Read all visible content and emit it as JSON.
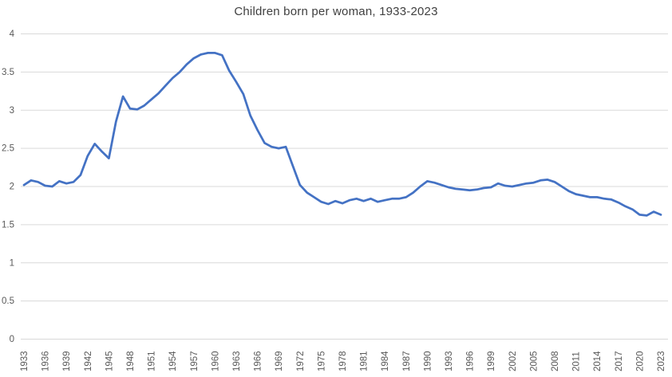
{
  "chart_data": {
    "type": "line",
    "title": "Children born per woman, 1933-2023",
    "xlabel": "",
    "ylabel": "",
    "legend": "none",
    "grid": "horizontal",
    "ylim": [
      0,
      4
    ],
    "yticks": [
      0,
      0.5,
      1,
      1.5,
      2,
      2.5,
      3,
      3.5,
      4
    ],
    "xticks": [
      1933,
      1936,
      1939,
      1942,
      1945,
      1948,
      1951,
      1954,
      1957,
      1960,
      1963,
      1966,
      1969,
      1972,
      1975,
      1978,
      1981,
      1984,
      1987,
      1990,
      1993,
      1996,
      1999,
      2002,
      2005,
      2008,
      2011,
      2014,
      2017,
      2020,
      2023
    ],
    "x": [
      1933,
      1934,
      1935,
      1936,
      1937,
      1938,
      1939,
      1940,
      1941,
      1942,
      1943,
      1944,
      1945,
      1946,
      1947,
      1948,
      1949,
      1950,
      1951,
      1952,
      1953,
      1954,
      1955,
      1956,
      1957,
      1958,
      1959,
      1960,
      1961,
      1962,
      1963,
      1964,
      1965,
      1966,
      1967,
      1968,
      1969,
      1970,
      1971,
      1972,
      1973,
      1974,
      1975,
      1976,
      1977,
      1978,
      1979,
      1980,
      1981,
      1982,
      1983,
      1984,
      1985,
      1986,
      1987,
      1988,
      1989,
      1990,
      1991,
      1992,
      1993,
      1994,
      1995,
      1996,
      1997,
      1998,
      1999,
      2000,
      2001,
      2002,
      2003,
      2004,
      2005,
      2006,
      2007,
      2008,
      2009,
      2010,
      2011,
      2012,
      2013,
      2014,
      2015,
      2016,
      2017,
      2018,
      2019,
      2020,
      2021,
      2022,
      2023
    ],
    "series": [
      {
        "name": "Children born per woman",
        "values": [
          2.02,
          2.08,
          2.06,
          2.01,
          2.0,
          2.07,
          2.04,
          2.06,
          2.15,
          2.4,
          2.56,
          2.46,
          2.37,
          2.85,
          3.18,
          3.02,
          3.01,
          3.06,
          3.14,
          3.22,
          3.32,
          3.42,
          3.5,
          3.6,
          3.68,
          3.73,
          3.75,
          3.75,
          3.72,
          3.52,
          3.37,
          3.21,
          2.93,
          2.74,
          2.57,
          2.52,
          2.5,
          2.52,
          2.27,
          2.02,
          1.92,
          1.86,
          1.8,
          1.77,
          1.81,
          1.78,
          1.82,
          1.84,
          1.81,
          1.84,
          1.8,
          1.82,
          1.84,
          1.84,
          1.86,
          1.92,
          2.0,
          2.07,
          2.05,
          2.02,
          1.99,
          1.97,
          1.96,
          1.95,
          1.96,
          1.98,
          1.99,
          2.04,
          2.01,
          2.0,
          2.02,
          2.04,
          2.05,
          2.08,
          2.09,
          2.06,
          2.0,
          1.94,
          1.9,
          1.88,
          1.86,
          1.86,
          1.84,
          1.83,
          1.79,
          1.74,
          1.7,
          1.63,
          1.62,
          1.67,
          1.63
        ]
      }
    ],
    "colors": {
      "line": "#4472C4",
      "gridline": "#D9D9D9",
      "tick_label": "#595959",
      "title": "#404040",
      "background": "#FFFFFF"
    }
  }
}
